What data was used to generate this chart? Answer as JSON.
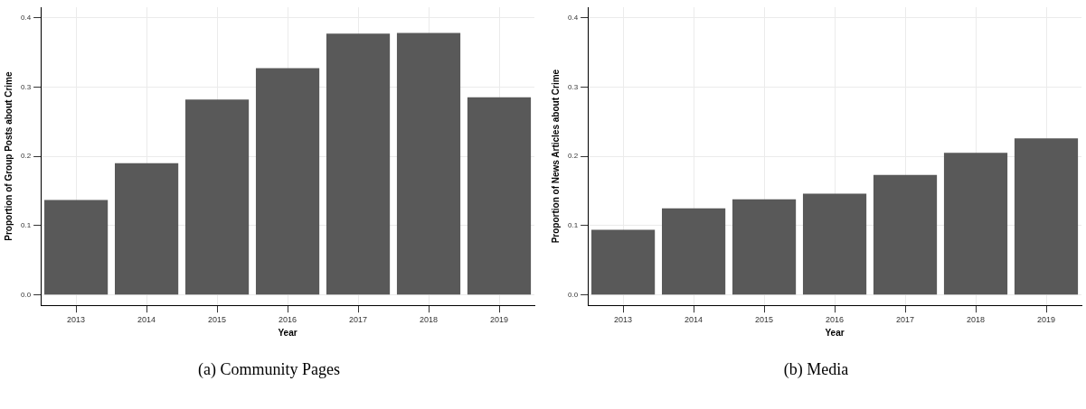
{
  "chart_data": [
    {
      "type": "bar",
      "xlabel": "Year",
      "ylabel": "Proportion of Group Posts about Crime",
      "categories": [
        "2013",
        "2014",
        "2015",
        "2016",
        "2017",
        "2018",
        "2019"
      ],
      "values": [
        0.137,
        0.19,
        0.282,
        0.327,
        0.377,
        0.378,
        0.285
      ],
      "color": "#595959",
      "ylim": [
        -0.015,
        0.415
      ],
      "yticks": [
        {
          "value": 0,
          "label": "0.0"
        },
        0.1,
        0.2,
        0.3,
        0.4
      ],
      "grid": true,
      "annotations": [
        "(a) Community Pages"
      ]
    },
    {
      "type": "bar",
      "xlabel": "Year",
      "ylabel": "Proportion of News Articles about Crime",
      "categories": [
        "2013",
        "2014",
        "2015",
        "2016",
        "2017",
        "2018",
        "2019"
      ],
      "values": [
        0.094,
        0.125,
        0.138,
        0.146,
        0.173,
        0.205,
        0.226
      ],
      "color": "#595959",
      "ylim": [
        -0.015,
        0.415
      ],
      "yticks": [
        {
          "value": 0,
          "label": "0.0"
        },
        0.1,
        0.2,
        0.3,
        0.4
      ],
      "grid": true,
      "annotations": [
        "(b) Media"
      ]
    }
  ]
}
